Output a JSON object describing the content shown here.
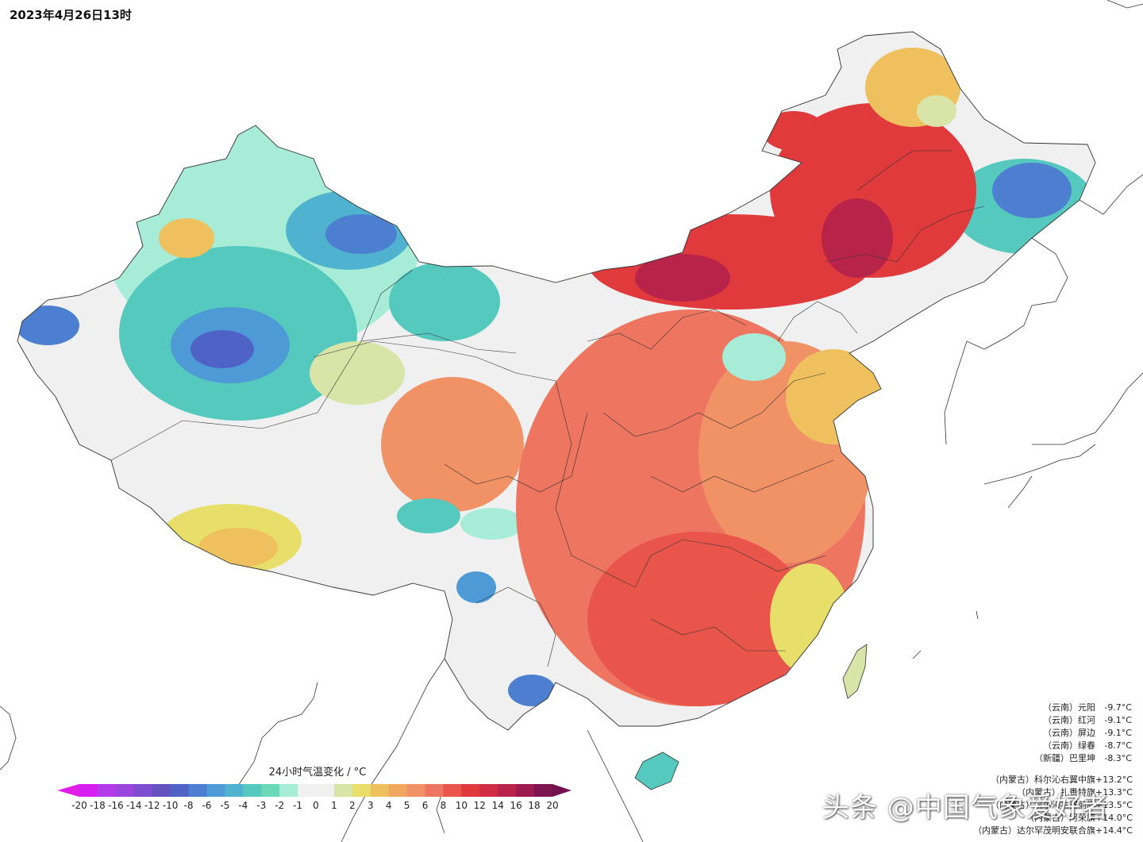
{
  "timestamp": "2023年4月26日13时",
  "legend": {
    "title": "24小时气温变化 / °C",
    "ticks": [
      "-20",
      "-18",
      "-16",
      "-14",
      "-12",
      "-10",
      "-8",
      "-6",
      "-5",
      "-4",
      "-3",
      "-2",
      "-1",
      "0",
      "1",
      "2",
      "3",
      "4",
      "5",
      "6",
      "8",
      "10",
      "12",
      "14",
      "16",
      "18",
      "20"
    ],
    "colors": [
      "#d61ef0",
      "#b43be8",
      "#9a46dc",
      "#7d4ecf",
      "#6453bf",
      "#4f63c6",
      "#4d7fd0",
      "#4e9ad6",
      "#4fb3cf",
      "#56c9bf",
      "#6ad9b8",
      "#a6ecd6",
      "#f0f0f0",
      "#f0f0f0",
      "#d8e4a8",
      "#e8df6a",
      "#eec15e",
      "#f0a860",
      "#f09266",
      "#ee7660",
      "#e9554a",
      "#e03a3c",
      "#d02d45",
      "#b82349",
      "#9c1a4e",
      "#7e1352"
    ],
    "low_color": "#e01ee8",
    "high_color": "#741050"
  },
  "cold_stations": [
    {
      "region": "（云南）",
      "name": "元阳",
      "value": "-9.7°C"
    },
    {
      "region": "（云南）",
      "name": "红河",
      "value": "-9.1°C"
    },
    {
      "region": "（云南）",
      "name": "屏边",
      "value": "-9.1°C"
    },
    {
      "region": "（云南）",
      "name": "绿春",
      "value": "-8.7°C"
    },
    {
      "region": "（新疆）",
      "name": "巴里坤",
      "value": "-8.3°C"
    }
  ],
  "warm_stations": [
    {
      "region": "（内蒙古）",
      "name": "科尔沁右翼中旗",
      "value": "+13.2°C"
    },
    {
      "region": "（内蒙古）",
      "name": "扎赉特旗",
      "value": "+13.3°C"
    },
    {
      "region": "（内蒙古）",
      "name": "科尔沁右翼前旗",
      "value": "+13.5°C"
    },
    {
      "region": "（内蒙古）",
      "name": "阿荣旗",
      "value": "+14.0°C"
    },
    {
      "region": "（内蒙古）",
      "name": "达尔罕茂明安联合旗",
      "value": "+14.4°C"
    }
  ],
  "watermark": "头条 @中国气象爱好者"
}
